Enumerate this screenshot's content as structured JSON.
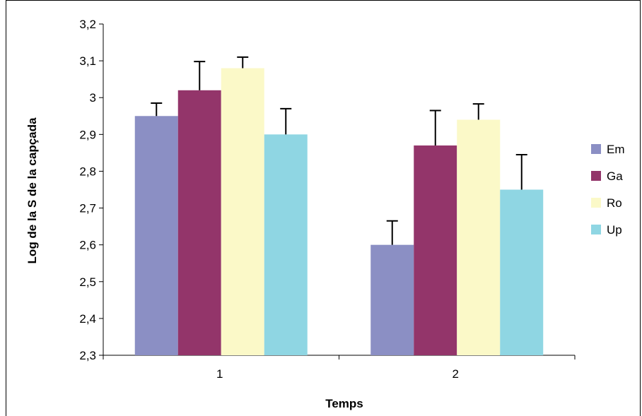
{
  "chart_data": {
    "type": "bar",
    "xlabel": "Temps",
    "ylabel": "Log de la S de la capçada",
    "categories": [
      "1",
      "2"
    ],
    "ylim": [
      2.3,
      3.2
    ],
    "yticks": [
      "2,3",
      "2,4",
      "2,5",
      "2,6",
      "2,7",
      "2,8",
      "2,9",
      "3",
      "3,1",
      "3,2"
    ],
    "series": [
      {
        "name": "Em",
        "color": "#8b8fc4",
        "values": [
          2.95,
          2.6
        ],
        "errors": [
          0.035,
          0.065
        ]
      },
      {
        "name": "Ga",
        "color": "#93356a",
        "values": [
          3.02,
          2.87
        ],
        "errors": [
          0.078,
          0.095
        ]
      },
      {
        "name": "Ro",
        "color": "#fbf9c8",
        "values": [
          3.08,
          2.94
        ],
        "errors": [
          0.03,
          0.043
        ]
      },
      {
        "name": "Up",
        "color": "#8fd6e3",
        "values": [
          2.9,
          2.75
        ],
        "errors": [
          0.07,
          0.095
        ]
      }
    ],
    "grid": false,
    "legend_position": "right"
  }
}
